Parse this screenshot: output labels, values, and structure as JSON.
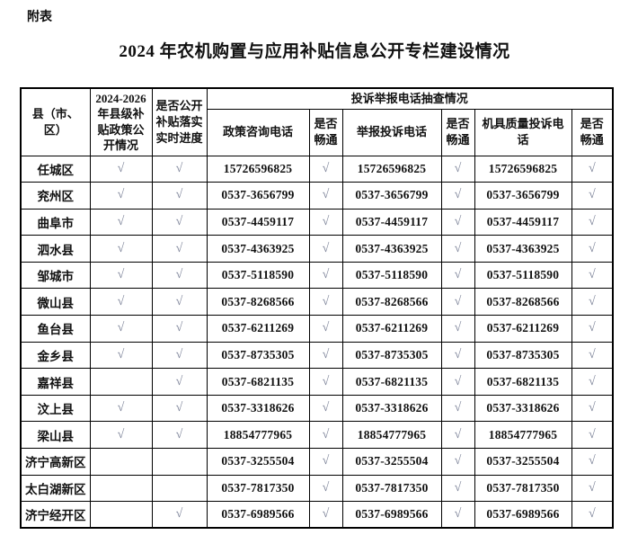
{
  "page": {
    "tag": "附表",
    "title": "2024 年农机购置与应用补贴信息公开专栏建设情况"
  },
  "table": {
    "headers": {
      "county": "县（市、区）",
      "policy_open": "2024-2026年县级补贴政策公开情况",
      "realtime_progress": "是否公开补贴落实实时进度",
      "phone_check_group": "投诉举报电话抽查情况",
      "policy_phone": "政策咨询电话",
      "smooth": "是否畅通",
      "report_phone": "举报投诉电话",
      "quality_phone": "机具质量投诉电话"
    },
    "check_mark": "√",
    "rows": [
      {
        "county": "任城区",
        "policy_open": "√",
        "realtime": "√",
        "policy_phone": "15726596825",
        "policy_ok": "√",
        "report_phone": "15726596825",
        "report_ok": "√",
        "quality_phone": "15726596825",
        "quality_ok": "√"
      },
      {
        "county": "兖州区",
        "policy_open": "√",
        "realtime": "√",
        "policy_phone": "0537-3656799",
        "policy_ok": "√",
        "report_phone": "0537-3656799",
        "report_ok": "√",
        "quality_phone": "0537-3656799",
        "quality_ok": "√"
      },
      {
        "county": "曲阜市",
        "policy_open": "√",
        "realtime": "√",
        "policy_phone": "0537-4459117",
        "policy_ok": "√",
        "report_phone": "0537-4459117",
        "report_ok": "√",
        "quality_phone": "0537-4459117",
        "quality_ok": "√"
      },
      {
        "county": "泗水县",
        "policy_open": "√",
        "realtime": "√",
        "policy_phone": "0537-4363925",
        "policy_ok": "√",
        "report_phone": "0537-4363925",
        "report_ok": "√",
        "quality_phone": "0537-4363925",
        "quality_ok": "√"
      },
      {
        "county": "邹城市",
        "policy_open": "√",
        "realtime": "√",
        "policy_phone": "0537-5118590",
        "policy_ok": "√",
        "report_phone": "0537-5118590",
        "report_ok": "√",
        "quality_phone": "0537-5118590",
        "quality_ok": "√"
      },
      {
        "county": "微山县",
        "policy_open": "√",
        "realtime": "√",
        "policy_phone": "0537-8268566",
        "policy_ok": "√",
        "report_phone": "0537-8268566",
        "report_ok": "√",
        "quality_phone": "0537-8268566",
        "quality_ok": "√"
      },
      {
        "county": "鱼台县",
        "policy_open": "√",
        "realtime": "√",
        "policy_phone": "0537-6211269",
        "policy_ok": "√",
        "report_phone": "0537-6211269",
        "report_ok": "√",
        "quality_phone": "0537-6211269",
        "quality_ok": "√"
      },
      {
        "county": "金乡县",
        "policy_open": "√",
        "realtime": "√",
        "policy_phone": "0537-8735305",
        "policy_ok": "√",
        "report_phone": "0537-8735305",
        "report_ok": "√",
        "quality_phone": "0537-8735305",
        "quality_ok": "√"
      },
      {
        "county": "嘉祥县",
        "policy_open": "",
        "realtime": "√",
        "policy_phone": "0537-6821135",
        "policy_ok": "√",
        "report_phone": "0537-6821135",
        "report_ok": "√",
        "quality_phone": "0537-6821135",
        "quality_ok": "√"
      },
      {
        "county": "汶上县",
        "policy_open": "√",
        "realtime": "√",
        "policy_phone": "0537-3318626",
        "policy_ok": "√",
        "report_phone": "0537-3318626",
        "report_ok": "√",
        "quality_phone": "0537-3318626",
        "quality_ok": "√"
      },
      {
        "county": "梁山县",
        "policy_open": "√",
        "realtime": "√",
        "policy_phone": "18854777965",
        "policy_ok": "√",
        "report_phone": "18854777965",
        "report_ok": "√",
        "quality_phone": "18854777965",
        "quality_ok": "√"
      },
      {
        "county": "济宁高新区",
        "policy_open": "",
        "realtime": "",
        "policy_phone": "0537-3255504",
        "policy_ok": "√",
        "report_phone": "0537-3255504",
        "report_ok": "√",
        "quality_phone": "0537-3255504",
        "quality_ok": "√"
      },
      {
        "county": "太白湖新区",
        "policy_open": "",
        "realtime": "",
        "policy_phone": "0537-7817350",
        "policy_ok": "√",
        "report_phone": "0537-7817350",
        "report_ok": "√",
        "quality_phone": "0537-7817350",
        "quality_ok": "√"
      },
      {
        "county": "济宁经开区",
        "policy_open": "",
        "realtime": "√",
        "policy_phone": "0537-6989566",
        "policy_ok": "√",
        "report_phone": "0537-6989566",
        "report_ok": "√",
        "quality_phone": "0537-6989566",
        "quality_ok": "√"
      }
    ]
  }
}
